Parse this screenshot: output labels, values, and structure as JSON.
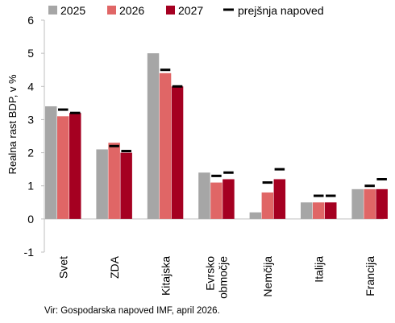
{
  "chart_data": {
    "type": "bar",
    "ylabel": "Realna rast BDP, v %",
    "ylim": [
      -1,
      6
    ],
    "yticks": [
      -1,
      0,
      1,
      2,
      3,
      4,
      5,
      6
    ],
    "grid": false,
    "legend_position": "top",
    "categories": [
      "Svet",
      "ZDA",
      "Kitajska",
      "Evrsko\nobmočje",
      "Nemčija",
      "Italija",
      "Francija"
    ],
    "series": [
      {
        "name": "2025",
        "color": "#a6a6a6",
        "values": [
          3.4,
          2.1,
          5.0,
          1.4,
          0.2,
          0.5,
          0.9
        ]
      },
      {
        "name": "2026",
        "color": "#e06666",
        "values": [
          3.1,
          2.3,
          4.4,
          1.1,
          0.8,
          0.5,
          0.9
        ]
      },
      {
        "name": "2027",
        "color": "#a50021",
        "values": [
          3.2,
          2.0,
          4.0,
          1.2,
          1.2,
          0.5,
          0.9
        ]
      }
    ],
    "previous_forecast": {
      "name": "prejšnja napoved",
      "color": "#000000",
      "series_2026": [
        3.3,
        2.2,
        4.5,
        1.3,
        1.1,
        0.7,
        1.0
      ],
      "series_2027": [
        3.2,
        2.05,
        4.0,
        1.4,
        1.5,
        0.7,
        1.2
      ]
    }
  },
  "source": "Vir: Gospodarska napoved IMF, april 2026."
}
